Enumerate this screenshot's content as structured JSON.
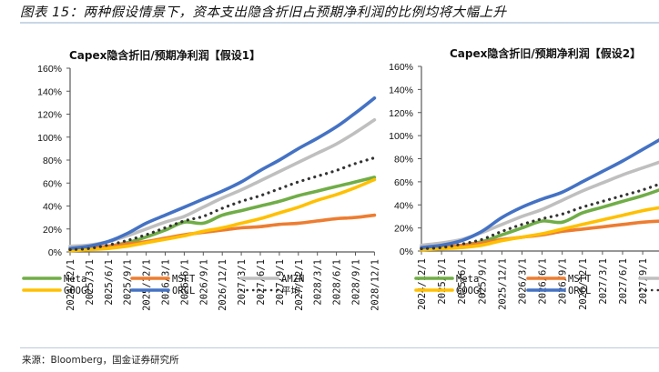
{
  "figure": {
    "title": "图表 15：两种假设情景下，资本支出隐含折旧占预期净利润的比例均将大幅上升",
    "source": "来源：Bloomberg，国金证券研究所"
  },
  "colors": {
    "Meta": "#70ad47",
    "MSFT": "#ed7d31",
    "AMZN": "#bfbfbf",
    "GOOGL": "#ffc000",
    "ORCL": "#4472c4",
    "平均": "#333333",
    "axis": "#595959",
    "rule": "#c9d7e6"
  },
  "chart_data": [
    {
      "type": "line",
      "title": "Capex隐含折旧/预期净利润【假设1】",
      "xlabel": "",
      "ylabel": "",
      "ylim": [
        0,
        160
      ],
      "yticks": [
        "0%",
        "20%",
        "40%",
        "60%",
        "80%",
        "100%",
        "120%",
        "140%",
        "160%"
      ],
      "grid": false,
      "legend": "bottom",
      "categories": [
        "2024/12/1",
        "2025/3/1",
        "2025/6/1",
        "2025/9/1",
        "2025/12/1",
        "2026/3/1",
        "2026/6/1",
        "2026/9/1",
        "2026/12/1",
        "2027/3/1",
        "2027/6/1",
        "2027/9/1",
        "2027/12/1",
        "2028/3/1",
        "2028/6/1",
        "2028/9/1",
        "2028/12/1"
      ],
      "series": [
        {
          "name": "Meta",
          "style": "solid",
          "values": [
            2,
            3,
            5,
            8,
            13,
            19,
            26,
            25,
            32,
            36,
            40,
            44,
            49,
            53,
            57,
            61,
            65
          ]
        },
        {
          "name": "MSFT",
          "style": "solid",
          "values": [
            2,
            3,
            5,
            7,
            9,
            12,
            15,
            17,
            19,
            21,
            22,
            24,
            25,
            27,
            29,
            30,
            32
          ]
        },
        {
          "name": "AMZN",
          "style": "solid",
          "values": [
            5,
            6,
            9,
            14,
            20,
            26,
            31,
            39,
            47,
            54,
            62,
            70,
            78,
            86,
            94,
            104,
            115
          ]
        },
        {
          "name": "GOOGL",
          "style": "solid",
          "values": [
            1,
            2,
            3,
            5,
            8,
            11,
            14,
            18,
            21,
            25,
            29,
            34,
            39,
            45,
            50,
            56,
            63
          ]
        },
        {
          "name": "ORCL",
          "style": "solid",
          "values": [
            3,
            5,
            9,
            16,
            25,
            32,
            39,
            46,
            53,
            61,
            71,
            80,
            90,
            99,
            109,
            121,
            134
          ]
        },
        {
          "name": "平均",
          "style": "dotted",
          "values": [
            2,
            3,
            6,
            10,
            15,
            21,
            27,
            31,
            38,
            44,
            49,
            55,
            61,
            66,
            71,
            77,
            82
          ]
        }
      ]
    },
    {
      "type": "line",
      "title": "Capex隐含折旧/预期净利润【假设2】",
      "xlabel": "",
      "ylabel": "",
      "ylim": [
        0,
        160
      ],
      "yticks": [
        "0%",
        "20%",
        "40%",
        "60%",
        "80%",
        "100%",
        "120%",
        "140%",
        "160%"
      ],
      "grid": false,
      "legend": "bottom",
      "categories": [
        "2024/12/1",
        "2025/3/1",
        "2025/6/1",
        "2025/9/1",
        "2025/12/1",
        "2026/3/1",
        "2026/6/1",
        "2026/9/1",
        "2026/12/1",
        "2027/3/1",
        "2027/6/1",
        "2027/9/1",
        "2027/12/1"
      ],
      "series": [
        {
          "name": "Meta",
          "style": "solid",
          "values": [
            2,
            3,
            5,
            8,
            14,
            20,
            26,
            25,
            33,
            38,
            43,
            48,
            54
          ]
        },
        {
          "name": "MSFT",
          "style": "solid",
          "values": [
            2,
            3,
            5,
            7,
            10,
            12,
            14,
            17,
            19,
            21,
            23,
            25,
            26
          ]
        },
        {
          "name": "AMZN",
          "style": "solid",
          "values": [
            5,
            7,
            10,
            16,
            23,
            30,
            36,
            44,
            52,
            59,
            66,
            72,
            78
          ]
        },
        {
          "name": "GOOGL",
          "style": "solid",
          "values": [
            1,
            2,
            3,
            5,
            9,
            12,
            15,
            19,
            23,
            27,
            31,
            35,
            38
          ]
        },
        {
          "name": "ORCL",
          "style": "solid",
          "values": [
            3,
            5,
            9,
            17,
            29,
            38,
            45,
            51,
            60,
            69,
            78,
            88,
            98
          ]
        },
        {
          "name": "平均",
          "style": "dotted",
          "values": [
            2,
            3,
            6,
            10,
            17,
            23,
            28,
            32,
            38,
            43,
            48,
            53,
            59
          ]
        }
      ]
    }
  ]
}
